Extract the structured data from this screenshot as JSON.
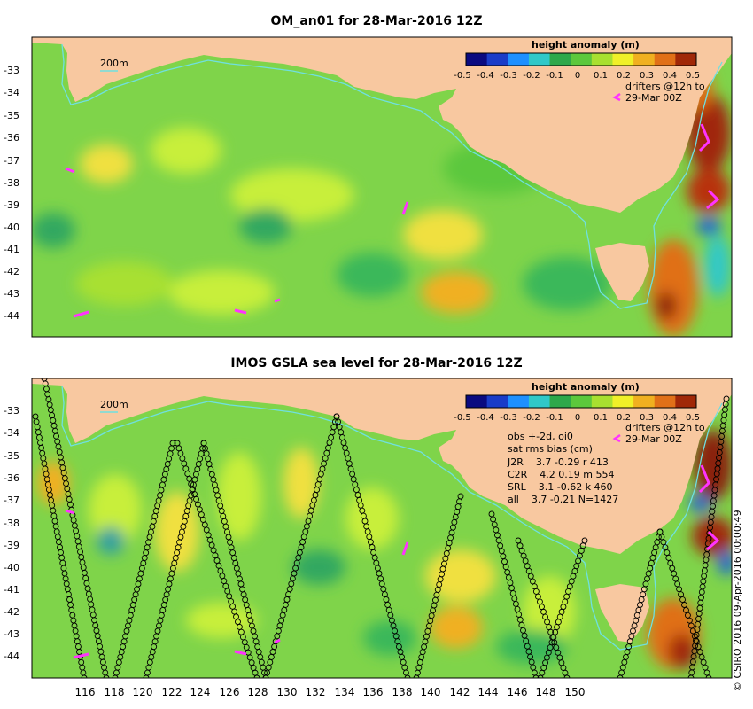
{
  "panels": [
    {
      "title": "OM_an01 for 28-Mar-2016 12Z",
      "contour_label": "200m",
      "legend": {
        "title": "height anomaly (m)",
        "tick_labels": [
          "-0.5",
          "-0.4",
          "-0.3",
          "-0.2",
          "-0.1",
          "0",
          "0.1",
          "0.2",
          "0.3",
          "0.4",
          "0.5"
        ],
        "drifters_line1": "drifters @12h to",
        "drifters_line2": "29-Mar 00Z"
      },
      "lat_labels": [
        "-33",
        "-34",
        "-35",
        "-36",
        "-37",
        "-38",
        "-39",
        "-40",
        "-41",
        "-42",
        "-43",
        "-44"
      ]
    },
    {
      "title": "IMOS GSLA sea level  for 28-Mar-2016 12Z",
      "contour_label": "200m",
      "legend": {
        "title": "height anomaly (m)",
        "tick_labels": [
          "-0.5",
          "-0.4",
          "-0.3",
          "-0.2",
          "-0.1",
          "0",
          "0.1",
          "0.2",
          "0.3",
          "0.4",
          "0.5"
        ],
        "drifters_line1": "drifters @12h to",
        "drifters_line2": "29-Mar 00Z"
      },
      "lat_labels": [
        "-33",
        "-34",
        "-35",
        "-36",
        "-37",
        "-38",
        "-39",
        "-40",
        "-41",
        "-42",
        "-43",
        "-44"
      ],
      "stats": {
        "line1": "obs +-2d, oi0",
        "line2": "sat rms bias (cm)",
        "line3": "J2R    3.7 -0.29 r 413",
        "line4": "C2R    4.2 0.19 m 554",
        "line5": "SRL    3.1 -0.62 k 460",
        "line6": "all    3.7 -0.21 N=1427"
      },
      "lon_labels": [
        "116",
        "118",
        "120",
        "122",
        "124",
        "126",
        "128",
        "130",
        "132",
        "134",
        "136",
        "138",
        "140",
        "142",
        "144",
        "146",
        "148",
        "150"
      ]
    }
  ],
  "credit": "© CSIRO 2016   09-Apr-2016 00:00:49",
  "colors": {
    "background": "#ffffff",
    "land": "#f8c8a0",
    "ocean_base": "#7fd44a",
    "ocean_light": "#c8ef3a",
    "ocean_dark": "#3ab85a",
    "contour": "#6fe0e0",
    "drifter": "#ff33ff",
    "track": "#000000"
  },
  "colorbar": [
    "#0a0a80",
    "#1a3cc8",
    "#1e90ff",
    "#30c8c8",
    "#2ea84a",
    "#5cc83c",
    "#a8e030",
    "#f0f028",
    "#f0b020",
    "#e07018",
    "#a02808"
  ]
}
